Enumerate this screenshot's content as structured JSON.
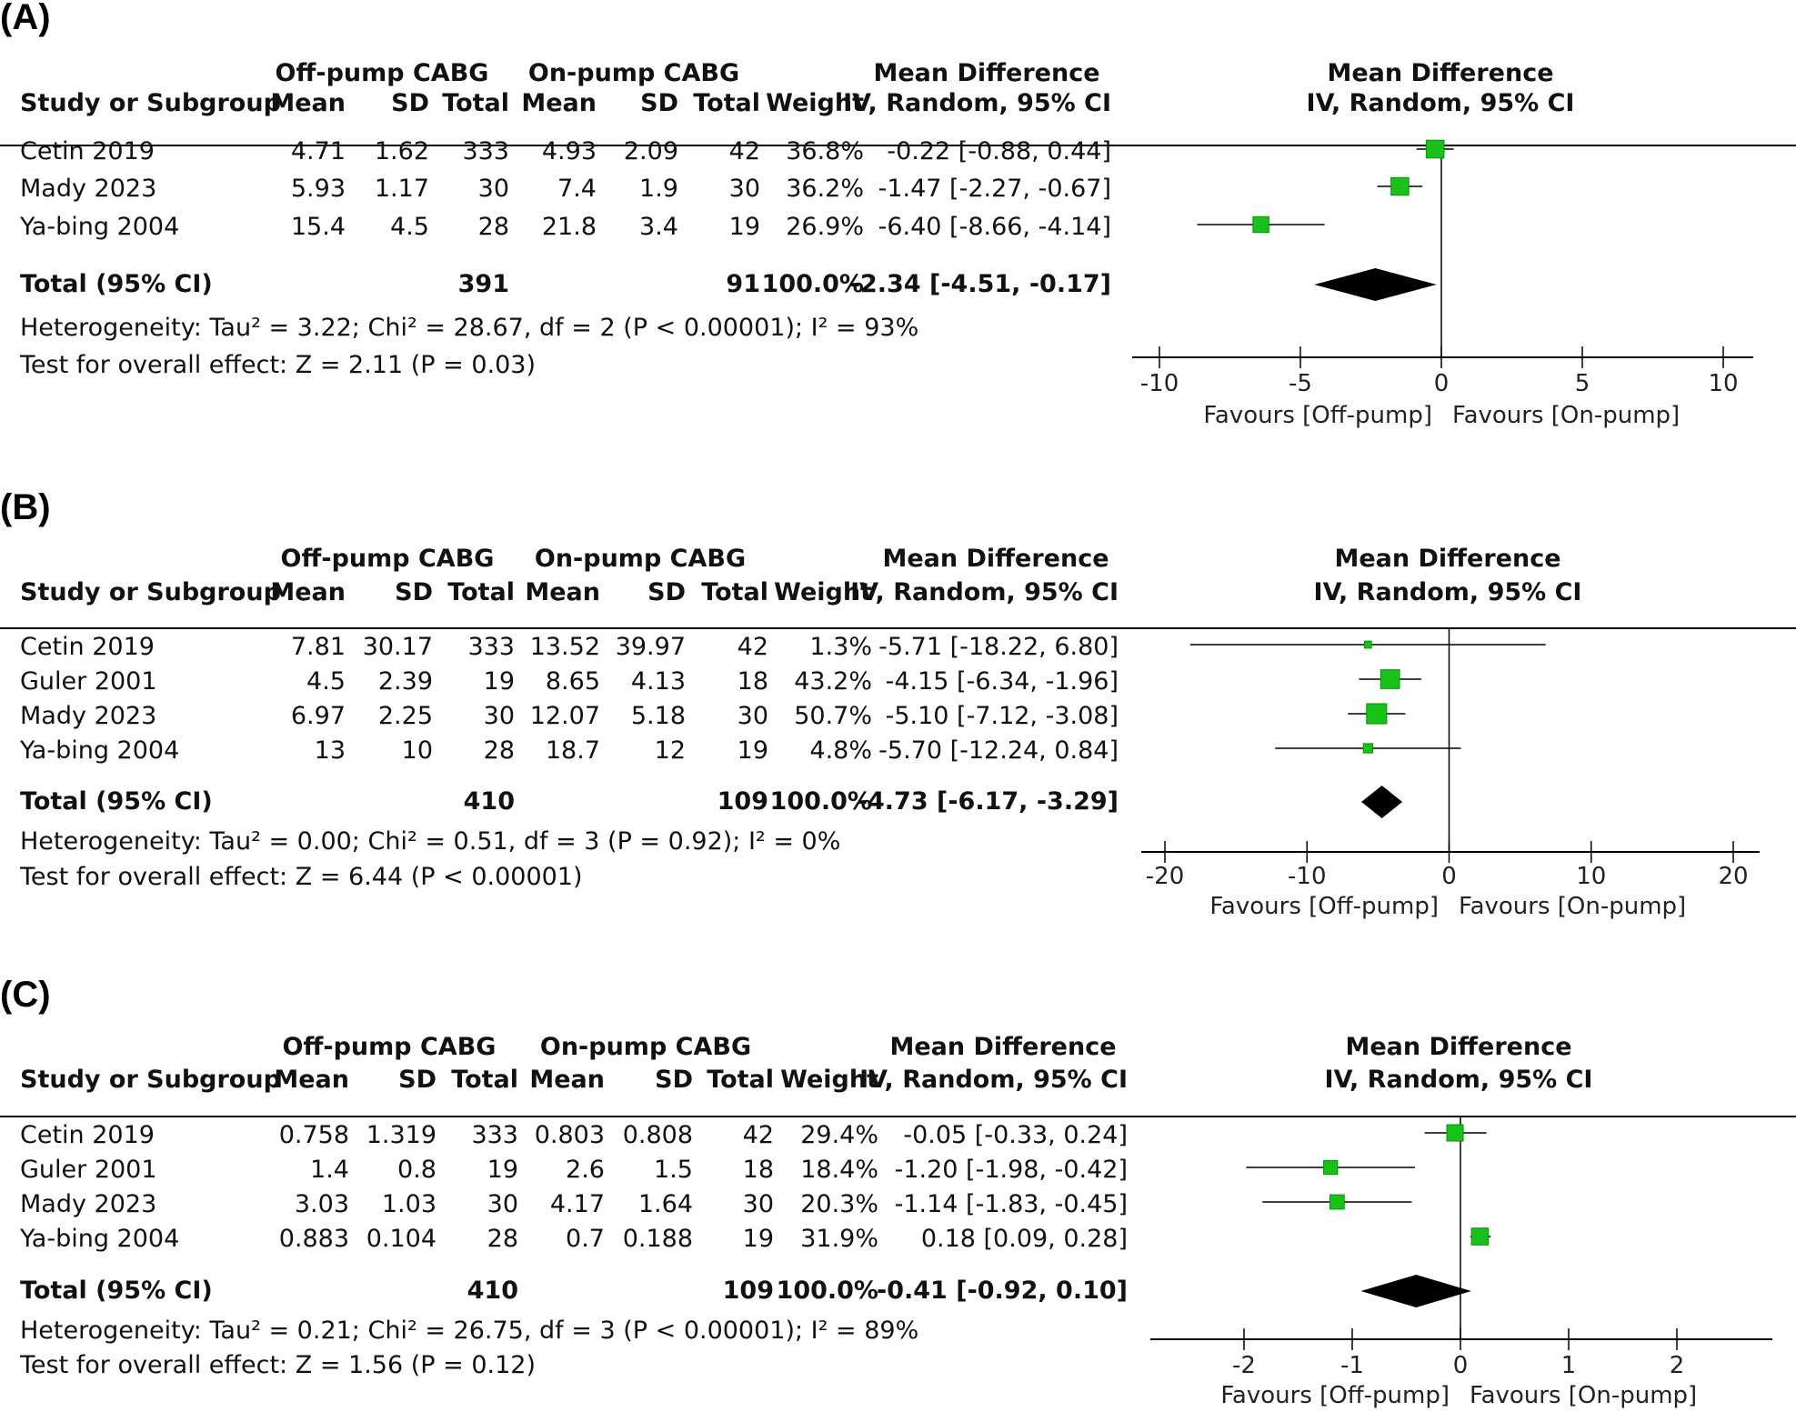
{
  "panels": [
    {
      "label": "(A)",
      "group1_header": "Off-pump CABG",
      "group2_header": "On-pump CABG",
      "md_header": "Mean Difference",
      "md_sub": "IV, Random, 95% CI",
      "columns": [
        "Study or Subgroup",
        "Mean",
        "SD",
        "Total",
        "Mean",
        "SD",
        "Total",
        "Weight",
        "IV, Random, 95% CI"
      ],
      "plot_header": "Mean Difference",
      "plot_sub": "IV, Random, 95% CI",
      "studies": [
        {
          "name": "Cetin 2019",
          "m1": "4.71",
          "sd1": "1.62",
          "n1": "333",
          "m2": "4.93",
          "sd2": "2.09",
          "n2": "42",
          "weight": "36.8%",
          "ci_text": "-0.22 [-0.88, 0.44]"
        },
        {
          "name": "Mady 2023",
          "m1": "5.93",
          "sd1": "1.17",
          "n1": "30",
          "m2": "7.4",
          "sd2": "1.9",
          "n2": "30",
          "weight": "36.2%",
          "ci_text": "-1.47 [-2.27, -0.67]"
        },
        {
          "name": "Ya-bing 2004",
          "m1": "15.4",
          "sd1": "4.5",
          "n1": "28",
          "m2": "21.8",
          "sd2": "3.4",
          "n2": "19",
          "weight": "26.9%",
          "ci_text": "-6.40 [-8.66, -4.14]"
        }
      ],
      "total": {
        "label": "Total (95% CI)",
        "n1": "391",
        "n2": "91",
        "weight": "100.0%",
        "ci_text": "-2.34 [-4.51, -0.17]"
      },
      "heterogeneity": "Heterogeneity: Tau² = 3.22; Chi² = 28.67, df = 2 (P < 0.00001); I² = 93%",
      "overall": "Test for overall effect: Z = 2.11 (P = 0.03)",
      "favours_left": "Favours [Off-pump]",
      "favours_right": "Favours [On-pump]"
    },
    {
      "label": "(B)",
      "group1_header": "Off-pump CABG",
      "group2_header": "On-pump CABG",
      "md_header": "Mean Difference",
      "md_sub": "IV, Random, 95% CI",
      "columns": [
        "Study or Subgroup",
        "Mean",
        "SD",
        "Total",
        "Mean",
        "SD",
        "Total",
        "Weight",
        "IV, Random, 95% CI"
      ],
      "plot_header": "Mean Difference",
      "plot_sub": "IV, Random, 95% CI",
      "studies": [
        {
          "name": "Cetin 2019",
          "m1": "7.81",
          "sd1": "30.17",
          "n1": "333",
          "m2": "13.52",
          "sd2": "39.97",
          "n2": "42",
          "weight": "1.3%",
          "ci_text": "-5.71 [-18.22, 6.80]"
        },
        {
          "name": "Guler 2001",
          "m1": "4.5",
          "sd1": "2.39",
          "n1": "19",
          "m2": "8.65",
          "sd2": "4.13",
          "n2": "18",
          "weight": "43.2%",
          "ci_text": "-4.15 [-6.34, -1.96]"
        },
        {
          "name": "Mady 2023",
          "m1": "6.97",
          "sd1": "2.25",
          "n1": "30",
          "m2": "12.07",
          "sd2": "5.18",
          "n2": "30",
          "weight": "50.7%",
          "ci_text": "-5.10 [-7.12, -3.08]"
        },
        {
          "name": "Ya-bing 2004",
          "m1": "13",
          "sd1": "10",
          "n1": "28",
          "m2": "18.7",
          "sd2": "12",
          "n2": "19",
          "weight": "4.8%",
          "ci_text": "-5.70 [-12.24, 0.84]"
        }
      ],
      "total": {
        "label": "Total (95% CI)",
        "n1": "410",
        "n2": "109",
        "weight": "100.0%",
        "ci_text": "-4.73 [-6.17, -3.29]"
      },
      "heterogeneity": "Heterogeneity: Tau² = 0.00; Chi² = 0.51, df = 3 (P = 0.92); I² = 0%",
      "overall": "Test for overall effect: Z = 6.44 (P < 0.00001)",
      "favours_left": "Favours [Off-pump]",
      "favours_right": "Favours [On-pump]"
    },
    {
      "label": "(C)",
      "group1_header": "Off-pump CABG",
      "group2_header": "On-pump CABG",
      "md_header": "Mean Difference",
      "md_sub": "IV, Random, 95% CI",
      "columns": [
        "Study or Subgroup",
        "Mean",
        "SD",
        "Total",
        "Mean",
        "SD",
        "Total",
        "Weight",
        "IV, Random, 95% CI"
      ],
      "plot_header": "Mean Difference",
      "plot_sub": "IV, Random, 95% CI",
      "studies": [
        {
          "name": "Cetin 2019",
          "m1": "0.758",
          "sd1": "1.319",
          "n1": "333",
          "m2": "0.803",
          "sd2": "0.808",
          "n2": "42",
          "weight": "29.4%",
          "ci_text": "-0.05 [-0.33, 0.24]"
        },
        {
          "name": "Guler 2001",
          "m1": "1.4",
          "sd1": "0.8",
          "n1": "19",
          "m2": "2.6",
          "sd2": "1.5",
          "n2": "18",
          "weight": "18.4%",
          "ci_text": "-1.20 [-1.98, -0.42]"
        },
        {
          "name": "Mady 2023",
          "m1": "3.03",
          "sd1": "1.03",
          "n1": "30",
          "m2": "4.17",
          "sd2": "1.64",
          "n2": "30",
          "weight": "20.3%",
          "ci_text": "-1.14 [-1.83, -0.45]"
        },
        {
          "name": "Ya-bing 2004",
          "m1": "0.883",
          "sd1": "0.104",
          "n1": "28",
          "m2": "0.7",
          "sd2": "0.188",
          "n2": "19",
          "weight": "31.9%",
          "ci_text": "0.18 [0.09, 0.28]"
        }
      ],
      "total": {
        "label": "Total (95% CI)",
        "n1": "410",
        "n2": "109",
        "weight": "100.0%",
        "ci_text": "-0.41 [-0.92, 0.10]"
      },
      "heterogeneity": "Heterogeneity: Tau² = 0.21; Chi² = 26.75, df = 3 (P < 0.00001); I² = 89%",
      "overall": "Test for overall effect: Z = 1.56 (P = 0.12)",
      "favours_left": "Favours [Off-pump]",
      "favours_right": "Favours [On-pump]"
    }
  ],
  "colors": {
    "marker": "#19c219",
    "marker_edge": "#0a8f0a",
    "diamond": "#000000",
    "line": "#000000"
  },
  "chart_data": [
    {
      "type": "scatter",
      "subtype": "forest",
      "xlim": [
        -10,
        10
      ],
      "xticks": [
        "-10",
        "-5",
        "0",
        "5",
        "10"
      ],
      "tick_values": [
        -10,
        -5,
        0,
        5,
        10
      ],
      "series": [
        {
          "values": [
            {
              "study": "Cetin 2019",
              "md": -0.22,
              "lo": -0.88,
              "hi": 0.44,
              "weight": 36.8
            },
            {
              "study": "Mady 2023",
              "md": -1.47,
              "lo": -2.27,
              "hi": -0.67,
              "weight": 36.2
            },
            {
              "study": "Ya-bing 2004",
              "md": -6.4,
              "lo": -8.66,
              "hi": -4.14,
              "weight": 26.9
            }
          ]
        }
      ],
      "pooled": {
        "md": -2.34,
        "lo": -4.51,
        "hi": -0.17
      }
    },
    {
      "type": "scatter",
      "subtype": "forest",
      "xlim": [
        -20,
        20
      ],
      "xticks": [
        "-20",
        "-10",
        "0",
        "10",
        "20"
      ],
      "tick_values": [
        -20,
        -10,
        0,
        10,
        20
      ],
      "series": [
        {
          "values": [
            {
              "study": "Cetin 2019",
              "md": -5.71,
              "lo": -18.22,
              "hi": 6.8,
              "weight": 1.3
            },
            {
              "study": "Guler 2001",
              "md": -4.15,
              "lo": -6.34,
              "hi": -1.96,
              "weight": 43.2
            },
            {
              "study": "Mady 2023",
              "md": -5.1,
              "lo": -7.12,
              "hi": -3.08,
              "weight": 50.7
            },
            {
              "study": "Ya-bing 2004",
              "md": -5.7,
              "lo": -12.24,
              "hi": 0.84,
              "weight": 4.8
            }
          ]
        }
      ],
      "pooled": {
        "md": -4.73,
        "lo": -6.17,
        "hi": -3.29
      }
    },
    {
      "type": "scatter",
      "subtype": "forest",
      "xlim": [
        -2,
        2
      ],
      "xticks": [
        "-2",
        "-1",
        "0",
        "1",
        "2"
      ],
      "tick_values": [
        -2,
        -1,
        0,
        1,
        2
      ],
      "series": [
        {
          "values": [
            {
              "study": "Cetin 2019",
              "md": -0.05,
              "lo": -0.33,
              "hi": 0.24,
              "weight": 29.4
            },
            {
              "study": "Guler 2001",
              "md": -1.2,
              "lo": -1.98,
              "hi": -0.42,
              "weight": 18.4
            },
            {
              "study": "Mady 2023",
              "md": -1.14,
              "lo": -1.83,
              "hi": -0.45,
              "weight": 20.3
            },
            {
              "study": "Ya-bing 2004",
              "md": 0.18,
              "lo": 0.09,
              "hi": 0.28,
              "weight": 31.9
            }
          ]
        }
      ],
      "pooled": {
        "md": -0.41,
        "lo": -0.92,
        "hi": 0.1
      }
    }
  ]
}
